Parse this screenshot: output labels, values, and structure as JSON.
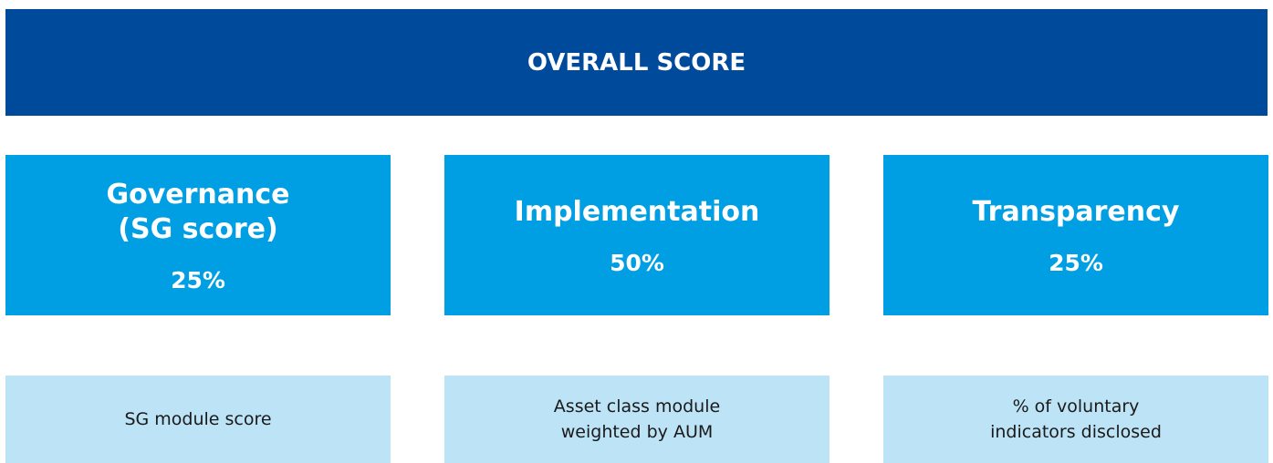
{
  "header": {
    "title": "OVERALL SCORE"
  },
  "pillars": [
    {
      "title": [
        "Governance",
        "(SG score)"
      ],
      "weight": "25%",
      "description": [
        "SG module score"
      ]
    },
    {
      "title": [
        "Implementation"
      ],
      "weight": "50%",
      "description": [
        "Asset class module",
        "weighted by AUM"
      ]
    },
    {
      "title": [
        "Transparency"
      ],
      "weight": "25%",
      "description": [
        "% of voluntary",
        "indicators disclosed"
      ]
    }
  ]
}
